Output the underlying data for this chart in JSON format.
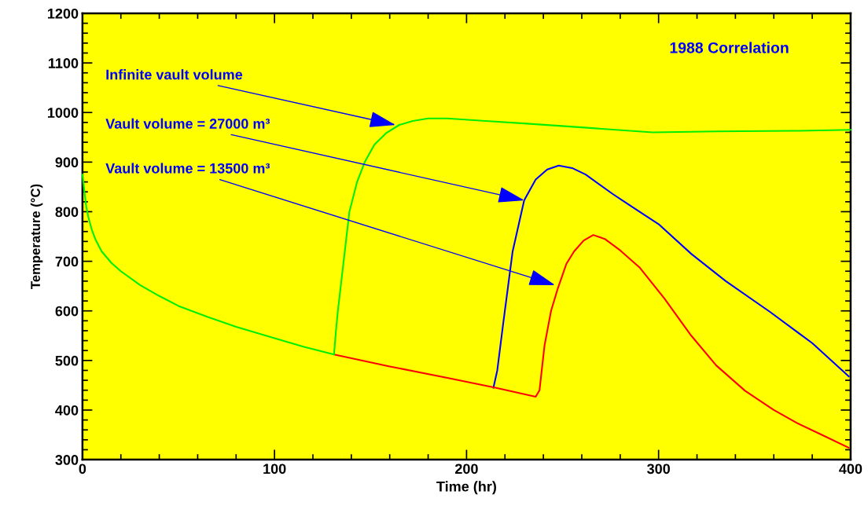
{
  "chart_data": {
    "type": "line",
    "xlabel": "Time (hr)",
    "ylabel": "Temperature (°C)",
    "xlim": [
      0,
      400
    ],
    "xticks": [
      0,
      100,
      200,
      300,
      400
    ],
    "ylim": [
      300,
      1200
    ],
    "yticks": [
      300,
      400,
      500,
      600,
      700,
      800,
      900,
      1000,
      1100,
      1200
    ],
    "grid": false,
    "legend": false,
    "marker": "none",
    "line_style": "solid",
    "series": [
      {
        "color": "#0000ff",
        "x": [
          214,
          216,
          219,
          224,
          230,
          236,
          242,
          248,
          255,
          262,
          276,
          290,
          300,
          317,
          335,
          358,
          380,
          399
        ],
        "values": [
          445,
          480,
          572,
          720,
          823,
          865,
          885,
          893,
          888,
          875,
          836,
          800,
          775,
          715,
          660,
          598,
          535,
          468
        ]
      },
      {
        "color": "#ff0000",
        "x": [
          131,
          160,
          190,
          215,
          236,
          238,
          240.6,
          244,
          247.5,
          252,
          256,
          261,
          266,
          272,
          280,
          290,
          303,
          317,
          330,
          345,
          360,
          372,
          385,
          399
        ],
        "values": [
          512,
          488,
          465,
          445,
          427,
          440,
          530,
          600,
          645,
          695,
          720,
          742,
          753,
          745,
          722,
          688,
          625,
          550,
          490,
          439,
          400,
          374,
          350,
          324
        ]
      },
      {
        "color": "#00ee00",
        "x": [
          0,
          1,
          2,
          3,
          5,
          7,
          10,
          15,
          20,
          30,
          40,
          50,
          65,
          80,
          100,
          115,
          131,
          132,
          133,
          134.5,
          136,
          139,
          143,
          147,
          152,
          158,
          165,
          172,
          180,
          190,
          210,
          230,
          260,
          297,
          330,
          370,
          400
        ],
        "values": [
          875,
          840,
          810,
          790,
          762,
          742,
          720,
          697,
          680,
          652,
          630,
          610,
          588,
          568,
          545,
          528,
          512,
          560,
          600,
          650,
          700,
          800,
          860,
          900,
          935,
          958,
          975,
          983,
          988,
          988,
          983,
          978,
          970,
          960,
          962,
          963,
          965
        ]
      }
    ],
    "annotations": [
      {
        "text": "Infinite vault volume",
        "x": 163,
        "y": 975
      },
      {
        "text": "Vault volume = 27000 m³",
        "x": 230,
        "y": 823
      },
      {
        "text": "Vault volume = 13500 m³",
        "x": 246,
        "y": 652
      },
      "1988 Correlation"
    ]
  }
}
